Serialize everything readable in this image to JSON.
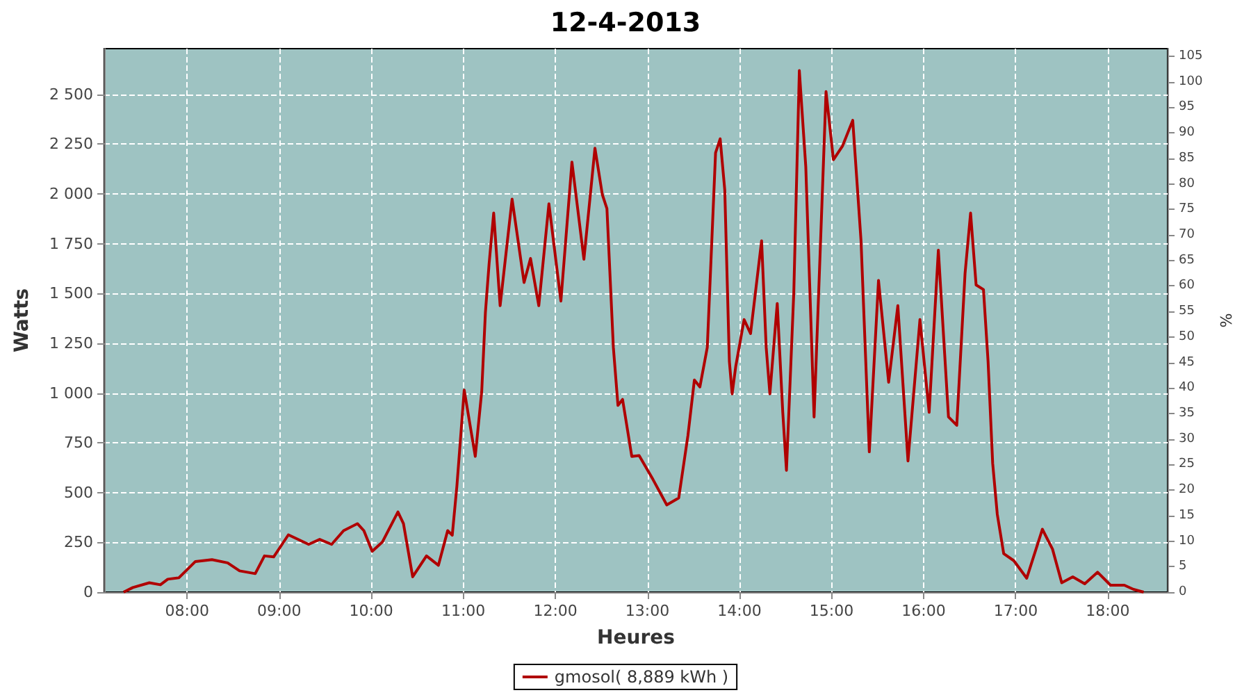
{
  "chart_data": {
    "type": "line",
    "title": "12-4-2013",
    "xlabel": "Heures",
    "ylabel": "Watts",
    "y2label": "%",
    "x": [
      7.31,
      7.41,
      7.59,
      7.71,
      7.79,
      7.91,
      8.09,
      8.27,
      8.44,
      8.57,
      8.74,
      8.84,
      8.94,
      9.1,
      9.32,
      9.44,
      9.57,
      9.7,
      9.85,
      9.92,
      10.01,
      10.12,
      10.29,
      10.35,
      10.45,
      10.6,
      10.73,
      10.83,
      10.88,
      10.93,
      11.01,
      11.13,
      11.2,
      11.24,
      11.28,
      11.33,
      11.4,
      11.53,
      11.66,
      11.73,
      11.82,
      11.93,
      12.06,
      12.18,
      12.31,
      12.43,
      12.51,
      12.56,
      12.63,
      12.68,
      12.73,
      12.83,
      12.91,
      13.06,
      13.21,
      13.34,
      13.44,
      13.51,
      13.57,
      13.65,
      13.74,
      13.79,
      13.84,
      13.89,
      13.92,
      13.96,
      14.05,
      14.12,
      14.24,
      14.29,
      14.33,
      14.41,
      14.47,
      14.51,
      14.59,
      14.65,
      14.72,
      14.81,
      14.89,
      14.94,
      15.02,
      15.12,
      15.23,
      15.32,
      15.41,
      15.51,
      15.62,
      15.72,
      15.83,
      15.96,
      16.06,
      16.16,
      16.27,
      16.36,
      16.45,
      16.51,
      16.57,
      16.65,
      16.7,
      16.75,
      16.8,
      16.87,
      16.98,
      17.12,
      17.29,
      17.4,
      17.5,
      17.62,
      17.75,
      17.89,
      18.03,
      18.18,
      18.28,
      18.39
    ],
    "series": [
      {
        "name": "gmosol( 8,889 kWh )",
        "color": "#b00000",
        "values": [
          0,
          23,
          47,
          37,
          65,
          72,
          154,
          163,
          147,
          107,
          93,
          182,
          177,
          288,
          240,
          265,
          240,
          309,
          344,
          309,
          205,
          251,
          403,
          344,
          77,
          182,
          135,
          309,
          286,
          531,
          1015,
          682,
          1008,
          1404,
          1648,
          1904,
          1439,
          1974,
          1555,
          1676,
          1439,
          1951,
          1462,
          2160,
          1672,
          2230,
          1997,
          1927,
          1229,
          938,
          968,
          682,
          686,
          566,
          438,
          473,
          787,
          1066,
          1031,
          1229,
          2207,
          2277,
          2020,
          1159,
          996,
          1136,
          1369,
          1299,
          1765,
          1229,
          996,
          1450,
          903,
          612,
          1508,
          2620,
          2137,
          880,
          1881,
          2514,
          2172,
          2242,
          2370,
          1765,
          705,
          1566,
          1054,
          1439,
          659,
          1369,
          903,
          1718,
          880,
          838,
          1601,
          1904,
          1543,
          1520,
          1159,
          647,
          391,
          193,
          158,
          70,
          316,
          216,
          47,
          77,
          42,
          100,
          35,
          35,
          14,
          0
        ]
      }
    ],
    "xlim": [
      7.1,
      18.65
    ],
    "xticks": [
      {
        "value": 8,
        "label": "08:00"
      },
      {
        "value": 9,
        "label": "09:00"
      },
      {
        "value": 10,
        "label": "10:00"
      },
      {
        "value": 11,
        "label": "11:00"
      },
      {
        "value": 12,
        "label": "12:00"
      },
      {
        "value": 13,
        "label": "13:00"
      },
      {
        "value": 14,
        "label": "14:00"
      },
      {
        "value": 15,
        "label": "15:00"
      },
      {
        "value": 16,
        "label": "16:00"
      },
      {
        "value": 17,
        "label": "17:00"
      },
      {
        "value": 18,
        "label": "18:00"
      }
    ],
    "ylim": [
      0,
      2730
    ],
    "yticks": [
      0,
      250,
      500,
      750,
      {
        "value": 1000,
        "label": "1 000"
      },
      {
        "value": 1250,
        "label": "1 250"
      },
      {
        "value": 1500,
        "label": "1 500"
      },
      {
        "value": 1750,
        "label": "1 750"
      },
      {
        "value": 2000,
        "label": "2 000"
      },
      {
        "value": 2250,
        "label": "2 250"
      },
      {
        "value": 2500,
        "label": "2 500"
      }
    ],
    "y2lim": [
      0,
      106.5
    ],
    "y2ticks": [
      0,
      5,
      10,
      15,
      20,
      25,
      30,
      35,
      40,
      45,
      50,
      55,
      60,
      65,
      70,
      75,
      80,
      85,
      90,
      95,
      100,
      105
    ],
    "grid": true,
    "legend": "bottom",
    "marker": "none",
    "line_style": "solid"
  }
}
